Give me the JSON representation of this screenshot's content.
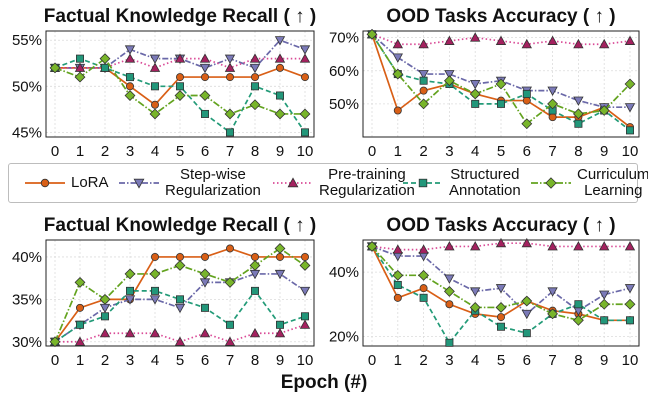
{
  "chart_data": [
    {
      "type": "line",
      "title": "Factual Knowledge Recall ( ↑ )",
      "xlabel": "Epoch (#)",
      "ylabel": "",
      "x": [
        0,
        1,
        2,
        3,
        4,
        5,
        6,
        7,
        8,
        9,
        10
      ],
      "ylim": [
        44.5,
        56
      ],
      "yticks": [
        45,
        50,
        55
      ],
      "ytick_labels": [
        "45%",
        "50%",
        "55%"
      ],
      "series": [
        {
          "name": "LoRA",
          "values": [
            52,
            52,
            52,
            50,
            48,
            51,
            51,
            51,
            51,
            52,
            51
          ]
        },
        {
          "name": "Step-wise Regularization",
          "values": [
            52,
            52,
            52,
            54,
            53,
            53,
            52,
            53,
            52,
            55,
            54
          ]
        },
        {
          "name": "Pre-training Regularization",
          "values": [
            52,
            52,
            52,
            53,
            52,
            53,
            53,
            52,
            53,
            53,
            53
          ]
        },
        {
          "name": "Structured Annotation",
          "values": [
            52,
            53,
            52,
            51,
            50,
            50,
            47,
            45,
            50,
            49,
            45
          ]
        },
        {
          "name": "Curriculum Learning",
          "values": [
            52,
            51,
            53,
            49,
            47,
            49,
            49,
            47,
            48,
            47,
            47
          ]
        }
      ]
    },
    {
      "type": "line",
      "title": "OOD Tasks Accuracy ( ↑ )",
      "xlabel": "Epoch (#)",
      "ylabel": "",
      "x": [
        0,
        1,
        2,
        3,
        4,
        5,
        6,
        7,
        8,
        9,
        10
      ],
      "ylim": [
        40,
        72
      ],
      "yticks": [
        50,
        60,
        70
      ],
      "ytick_labels": [
        "50%",
        "60%",
        "70%"
      ],
      "series": [
        {
          "name": "LoRA",
          "values": [
            71,
            48,
            54,
            56,
            53,
            51,
            51,
            46,
            46,
            49,
            43
          ]
        },
        {
          "name": "Step-wise Regularization",
          "values": [
            71,
            64,
            59,
            59,
            56,
            57,
            54,
            54,
            51,
            49,
            49
          ]
        },
        {
          "name": "Pre-training Regularization",
          "values": [
            71,
            68,
            68,
            69,
            70,
            69,
            68,
            69,
            68,
            68,
            69
          ]
        },
        {
          "name": "Structured Annotation",
          "values": [
            71,
            59,
            57,
            56,
            50,
            50,
            53,
            48,
            44,
            48,
            42
          ]
        },
        {
          "name": "Curriculum Learning",
          "values": [
            71,
            59,
            50,
            57,
            53,
            56,
            44,
            50,
            47,
            48,
            56
          ]
        }
      ]
    },
    {
      "type": "line",
      "title": "Factual Knowledge Recall ( ↑ )",
      "xlabel": "Epoch (#)",
      "ylabel": "",
      "x": [
        0,
        1,
        2,
        3,
        4,
        5,
        6,
        7,
        8,
        9,
        10
      ],
      "ylim": [
        29.5,
        42
      ],
      "yticks": [
        30,
        35,
        40
      ],
      "ytick_labels": [
        "30%",
        "35%",
        "40%"
      ],
      "series": [
        {
          "name": "LoRA",
          "values": [
            30,
            34,
            35,
            35,
            40,
            40,
            40,
            41,
            40,
            40,
            40
          ]
        },
        {
          "name": "Step-wise Regularization",
          "values": [
            30,
            32,
            34,
            35,
            35,
            34,
            37,
            37,
            38,
            38,
            36
          ]
        },
        {
          "name": "Pre-training Regularization",
          "values": [
            30,
            30,
            31,
            31,
            31,
            30,
            31,
            30,
            31,
            31,
            32
          ]
        },
        {
          "name": "Structured Annotation",
          "values": [
            30,
            32,
            33,
            36,
            36,
            35,
            34,
            32,
            36,
            32,
            33
          ]
        },
        {
          "name": "Curriculum Learning",
          "values": [
            30,
            37,
            35,
            38,
            38,
            39,
            38,
            37,
            39,
            41,
            39
          ]
        }
      ]
    },
    {
      "type": "line",
      "title": "OOD Tasks Accuracy ( ↑ )",
      "xlabel": "Epoch (#)",
      "ylabel": "",
      "x": [
        0,
        1,
        2,
        3,
        4,
        5,
        6,
        7,
        8,
        9,
        10
      ],
      "ylim": [
        17,
        50
      ],
      "yticks": [
        20,
        40
      ],
      "ytick_labels": [
        "20%",
        "40%"
      ],
      "series": [
        {
          "name": "LoRA",
          "values": [
            48,
            32,
            35,
            30,
            27,
            26,
            31,
            28,
            27,
            25,
            25
          ]
        },
        {
          "name": "Step-wise Regularization",
          "values": [
            48,
            45,
            45,
            38,
            34,
            35,
            27,
            34,
            28,
            33,
            35
          ]
        },
        {
          "name": "Pre-training Regularization",
          "values": [
            48,
            47,
            47,
            48,
            48,
            49,
            49,
            48,
            48,
            48,
            48
          ]
        },
        {
          "name": "Structured Annotation",
          "values": [
            48,
            36,
            32,
            18,
            28,
            23,
            21,
            27,
            30,
            25,
            25
          ]
        },
        {
          "name": "Curriculum Learning",
          "values": [
            48,
            39,
            39,
            34,
            29,
            29,
            31,
            27,
            25,
            30,
            30
          ]
        }
      ]
    }
  ],
  "legend": [
    {
      "name": "LoRA",
      "label": "LoRA"
    },
    {
      "name": "Step-wise Regularization",
      "label": "Step-wise\nRegularization"
    },
    {
      "name": "Pre-training Regularization",
      "label": "Pre-training\nRegularization"
    },
    {
      "name": "Structured Annotation",
      "label": "Structured\nAnnotation"
    },
    {
      "name": "Curriculum Learning",
      "label": "Curriculum\nLearning"
    }
  ],
  "styles": [
    {
      "color": "#d95f16",
      "line": "#d95f16",
      "dash": "",
      "marker": "circle",
      "fill": "#d95f16"
    },
    {
      "color": "#6a68a8",
      "line": "#6a68a8",
      "dash": "6,2,1.5,2",
      "marker": "tri-down",
      "fill": "#7b7ab8"
    },
    {
      "color": "#c9327d",
      "line": "#d94a96",
      "dash": "1.5,2.5",
      "marker": "tri-up",
      "fill": "#a4215f"
    },
    {
      "color": "#1f8c6e",
      "line": "#239b78",
      "dash": "5,3",
      "marker": "square",
      "fill": "#22977a"
    },
    {
      "color": "#5a8f1a",
      "line": "#63a31f",
      "dash": "7,2,1.5,2",
      "marker": "diamond",
      "fill": "#78b52a"
    }
  ],
  "x_axis_label": "Epoch (#)"
}
